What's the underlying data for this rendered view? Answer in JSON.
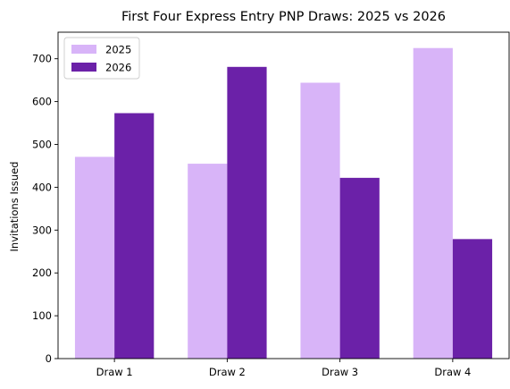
{
  "chart_data": {
    "type": "bar",
    "title": "First Four Express Entry PNP Draws: 2025 vs 2026",
    "xlabel": "",
    "ylabel": "Invitations Issued",
    "categories": [
      "Draw 1",
      "Draw 2",
      "Draw 3",
      "Draw 4"
    ],
    "series": [
      {
        "name": "2025",
        "values": [
          471,
          455,
          644,
          725
        ],
        "color": "#d8b4f8"
      },
      {
        "name": "2026",
        "values": [
          573,
          681,
          422,
          279
        ],
        "color": "#6b21a8"
      }
    ],
    "ylim": [
      0,
      762
    ],
    "yticks": [
      0,
      100,
      200,
      300,
      400,
      500,
      600,
      700
    ],
    "grid": false,
    "legend_position": "top-left"
  }
}
